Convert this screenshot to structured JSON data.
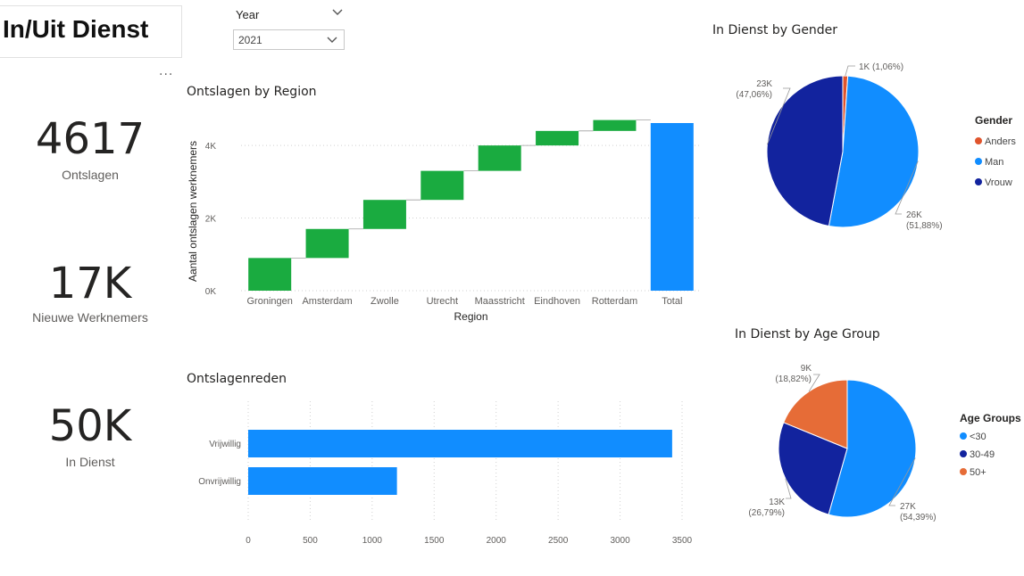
{
  "header": {
    "title": "In/Uit Dienst"
  },
  "slicer": {
    "label": "Year",
    "value": "2021"
  },
  "more_options": "...",
  "kpis": [
    {
      "value": "4617",
      "label": "Ontslagen"
    },
    {
      "value": "17K",
      "label": "Nieuwe Werknemers"
    },
    {
      "value": "50K",
      "label": "In Dienst"
    }
  ],
  "colors": {
    "green": "#1aab40",
    "blue": "#118dff",
    "navy": "#12239e",
    "orange": "#e66c37",
    "red": "#e0542c"
  },
  "region_chart": {
    "title": "Ontslagen by Region",
    "chart_data": {
      "type": "bar",
      "subtype": "waterfall",
      "title": "Ontslagen by Region",
      "xlabel": "Region",
      "ylabel": "Aantal ontslagen werknemers",
      "categories": [
        "Groningen",
        "Amsterdam",
        "Zwolle",
        "Utrecht",
        "Maasstricht",
        "Eindhoven",
        "Rotterdam",
        "Total"
      ],
      "values": [
        900,
        800,
        800,
        800,
        700,
        400,
        300,
        4617
      ],
      "ylim": [
        0,
        4617
      ],
      "yticks": [
        "0K",
        "2K",
        "4K"
      ],
      "grid": true
    }
  },
  "reason_chart": {
    "title": "Ontslagenreden",
    "chart_data": {
      "type": "bar",
      "orientation": "horizontal",
      "title": "Ontslagenreden",
      "categories": [
        "Vrijwillig",
        "Onvrijwillig"
      ],
      "values": [
        3420,
        1200
      ],
      "xlim": [
        0,
        3500
      ],
      "xticks": [
        "0",
        "500",
        "1000",
        "1500",
        "2000",
        "2500",
        "3000",
        "3500"
      ],
      "grid": true
    }
  },
  "gender_chart": {
    "title": "In Dienst by Gender",
    "legend_title": "Gender",
    "chart_data": {
      "type": "pie",
      "title": "In Dienst by Gender",
      "labels": [
        "Anders",
        "Man",
        "Vrouw"
      ],
      "values": [
        1.06,
        51.88,
        47.06
      ],
      "data_labels": [
        {
          "value": "1K",
          "pct": "(1,06%)"
        },
        {
          "value": "26K",
          "pct": "(51,88%)"
        },
        {
          "value": "23K",
          "pct": "(47,06%)"
        }
      ],
      "legend": "right"
    }
  },
  "age_chart": {
    "title": "In Dienst by Age Group",
    "legend_title": "Age Groups",
    "chart_data": {
      "type": "pie",
      "title": "In Dienst by Age Group",
      "labels": [
        "<30",
        "30-49",
        "50+"
      ],
      "values": [
        54.39,
        26.79,
        18.82
      ],
      "data_labels": [
        {
          "value": "27K",
          "pct": "(54,39%)"
        },
        {
          "value": "13K",
          "pct": "(26,79%)"
        },
        {
          "value": "9K",
          "pct": "(18,82%)"
        }
      ],
      "legend": "right"
    }
  }
}
